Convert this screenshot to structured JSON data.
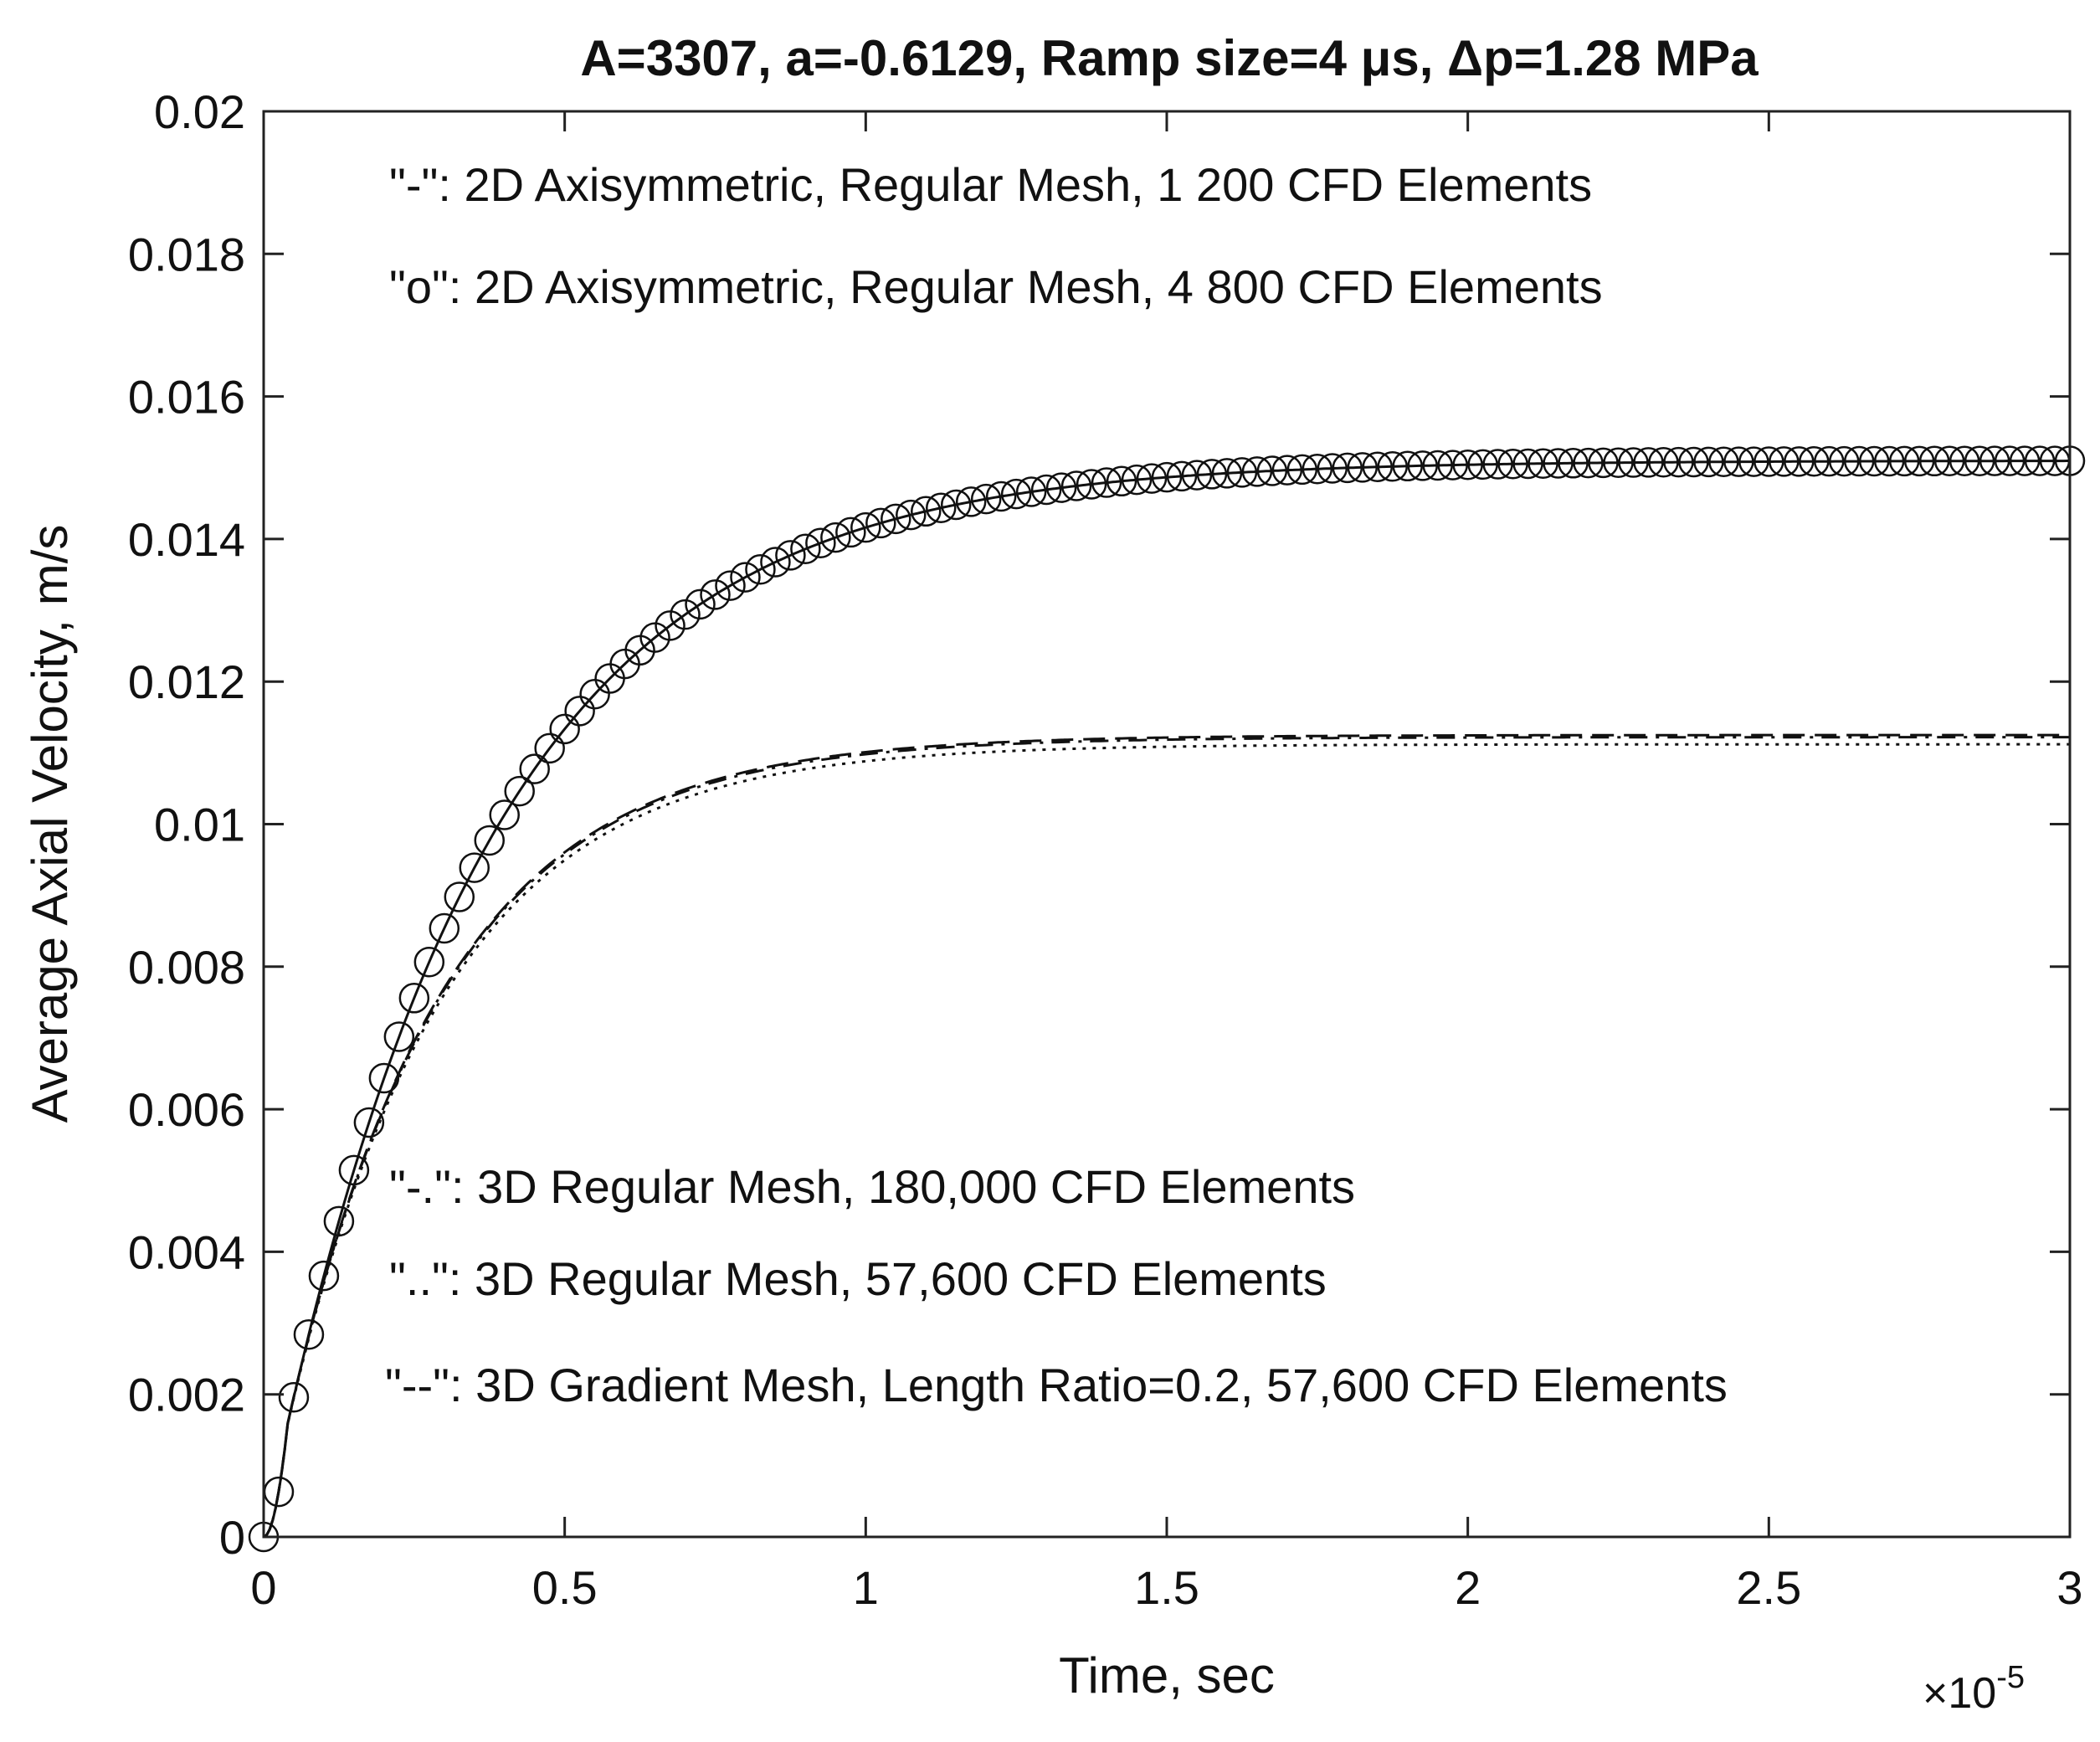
{
  "chart_data": {
    "type": "line",
    "title": "A=3307, a=-0.6129, Ramp size=4 μs, Δp=1.28 MPa",
    "xlabel": "Time, sec",
    "ylabel": "Average Axial Velocity, m/s",
    "xlim": [
      0,
      3
    ],
    "ylim": [
      0,
      0.02
    ],
    "x_exponent_label": "×10",
    "x_exponent_power": "-5",
    "x_ticks": [
      0,
      0.5,
      1,
      1.5,
      2,
      2.5,
      3
    ],
    "x_tick_labels": [
      "0",
      "0.5",
      "1",
      "1.5",
      "2",
      "2.5",
      "3"
    ],
    "y_ticks": [
      0,
      0.002,
      0.004,
      0.006,
      0.008,
      0.01,
      0.012,
      0.014,
      0.016,
      0.018,
      0.02
    ],
    "y_tick_labels": [
      "0",
      "0.002",
      "0.004",
      "0.006",
      "0.008",
      "0.01",
      "0.012",
      "0.014",
      "0.016",
      "0.018",
      "0.02"
    ],
    "grid": false,
    "annotations": [
      "\"-\": 2D Axisymmetric, Regular Mesh, 1 200 CFD Elements",
      "\"o\": 2D Axisymmetric, Regular Mesh, 4 800 CFD Elements",
      "\"-.\": 3D Regular Mesh, 180,000 CFD Elements",
      "\"..\": 3D Regular Mesh, 57,600 CFD Elements",
      "\"--\": 3D Gradient Mesh, Length Ratio=0.2, 57,600 CFD Elements"
    ],
    "series": [
      {
        "name": "2D Axisymmetric, Regular Mesh, 1 200 CFD Elements",
        "style": "solid",
        "model": "ramp_exponential",
        "final_value": 0.0151,
        "time_constant": 0.36,
        "ramp": 0.04,
        "x": [
          0,
          0.05,
          0.1,
          0.2,
          0.3,
          0.5,
          0.75,
          1,
          1.5,
          2,
          2.5,
          3
        ],
        "values": [
          0,
          0.0019,
          0.0045,
          0.0075,
          0.0095,
          0.0119,
          0.0134,
          0.0143,
          0.0149,
          0.0151,
          0.0151,
          0.0151
        ]
      },
      {
        "name": "2D Axisymmetric, Regular Mesh, 4 800 CFD Elements",
        "style": "circle",
        "model": "ramp_exponential",
        "final_value": 0.0151,
        "time_constant": 0.36,
        "ramp": 0.04,
        "marker_step": 0.025,
        "x": [
          0,
          0.05,
          0.1,
          0.2,
          0.3,
          0.5,
          0.75,
          1,
          1.5,
          2,
          2.5,
          3
        ],
        "values": [
          0,
          0.0019,
          0.0045,
          0.0075,
          0.0095,
          0.0119,
          0.0134,
          0.0143,
          0.0149,
          0.0151,
          0.0151,
          0.0151
        ]
      },
      {
        "name": "3D Regular Mesh, 180,000 CFD Elements",
        "style": "dashdot",
        "model": "ramp_exponential",
        "final_value": 0.01122,
        "time_constant": 0.26,
        "ramp": 0.04,
        "x": [
          0,
          0.1,
          0.2,
          0.3,
          0.5,
          0.75,
          1,
          1.5,
          2,
          3
        ],
        "values": [
          0,
          0.0037,
          0.0063,
          0.0078,
          0.0096,
          0.0106,
          0.011,
          0.0112,
          0.0112,
          0.0112
        ]
      },
      {
        "name": "3D Regular Mesh, 57,600 CFD Elements",
        "style": "dotted",
        "model": "ramp_exponential",
        "final_value": 0.01112,
        "time_constant": 0.26,
        "ramp": 0.04,
        "x": [
          0,
          0.1,
          0.2,
          0.3,
          0.5,
          0.75,
          1,
          1.5,
          2,
          3
        ],
        "values": [
          0,
          0.0037,
          0.0062,
          0.0077,
          0.0095,
          0.0105,
          0.0109,
          0.0111,
          0.0111,
          0.0111
        ]
      },
      {
        "name": "3D Gradient Mesh, Length Ratio=0.2, 57,600 CFD Elements",
        "style": "dashed",
        "model": "ramp_exponential",
        "final_value": 0.01125,
        "time_constant": 0.26,
        "ramp": 0.04,
        "x": [
          0,
          0.1,
          0.2,
          0.3,
          0.5,
          0.75,
          1,
          1.5,
          2,
          3
        ],
        "values": [
          0,
          0.0037,
          0.0063,
          0.0078,
          0.0096,
          0.0106,
          0.011,
          0.0112,
          0.0112,
          0.0112
        ]
      }
    ]
  }
}
